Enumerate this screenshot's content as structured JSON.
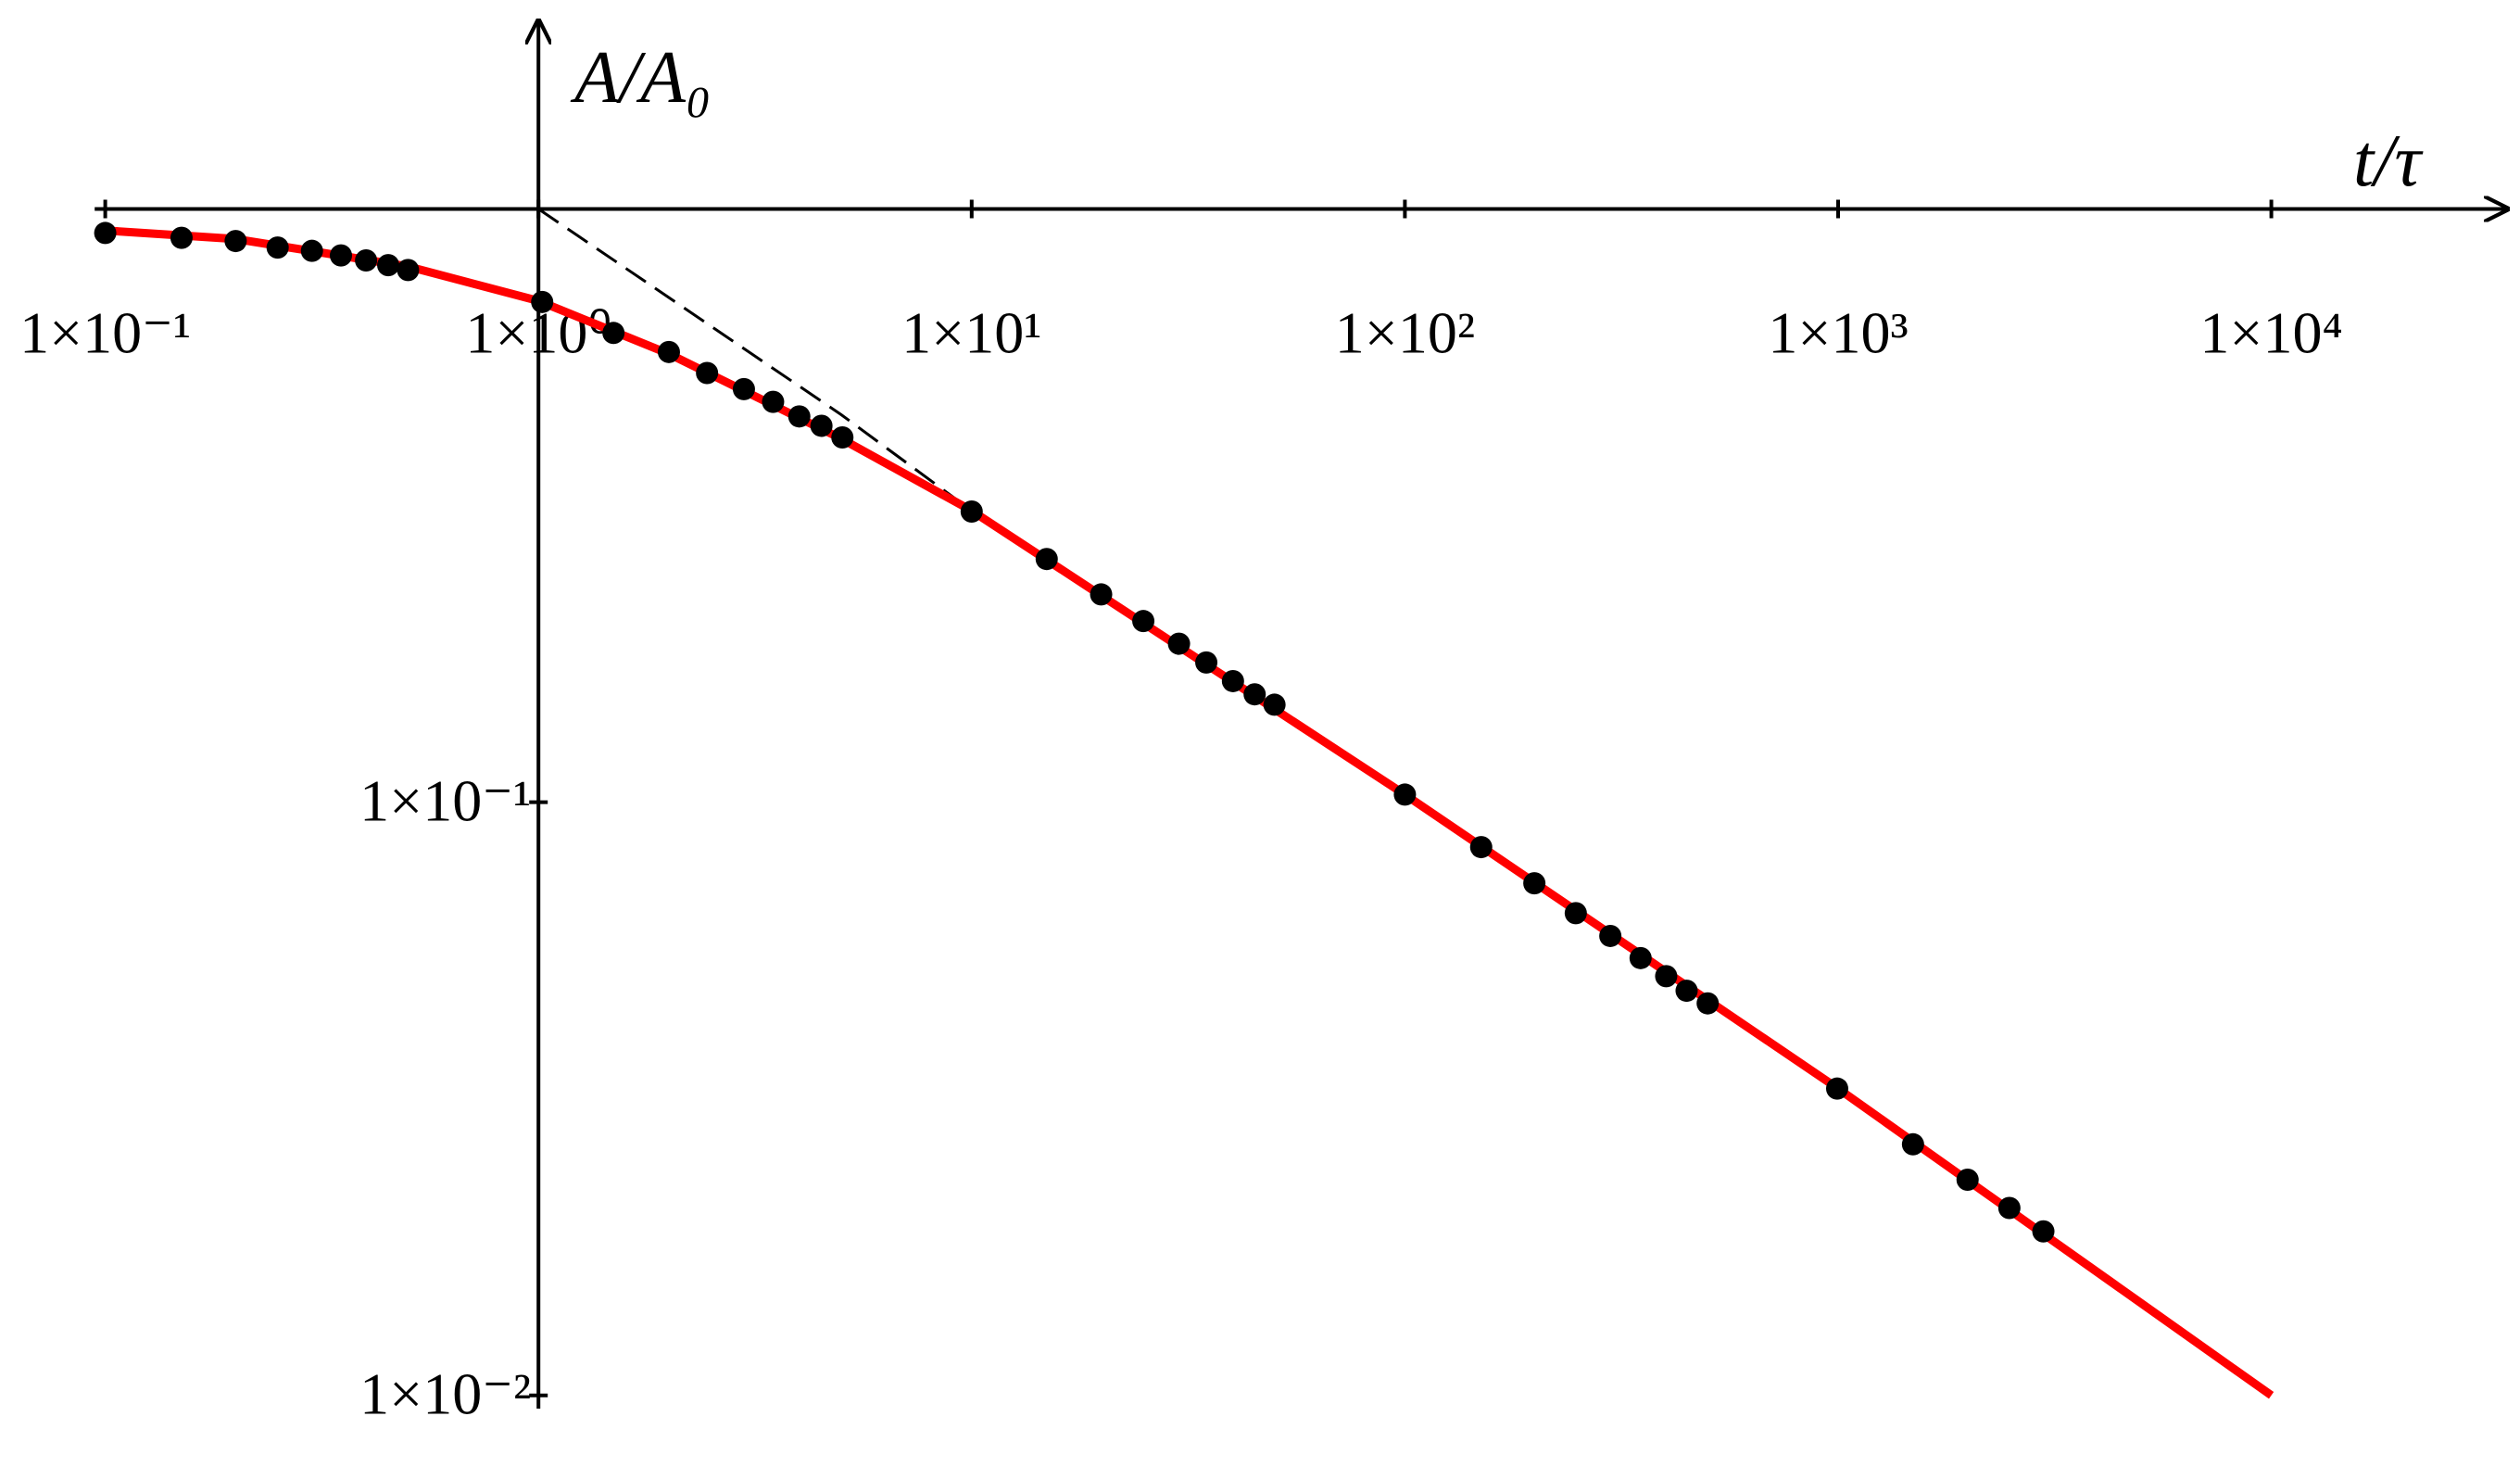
{
  "chart_data": {
    "type": "scatter",
    "x_label": "t/τ",
    "y_label": "A/A₀",
    "log_x": true,
    "log_y": true,
    "xlim": [
      0.09,
      35000
    ],
    "ylim": [
      0.0095,
      2
    ],
    "xticks": [
      {
        "value": 0.1,
        "label": "1×10⁻¹"
      },
      {
        "value": 1,
        "label": "1×10⁰"
      },
      {
        "value": 10,
        "label": "1×10¹"
      },
      {
        "value": 100,
        "label": "1×10²"
      },
      {
        "value": 1000,
        "label": "1×10³"
      },
      {
        "value": 10000,
        "label": "1×10⁴"
      }
    ],
    "yticks": [
      {
        "value": 0.1,
        "label": "1×10⁻¹"
      },
      {
        "value": 0.01,
        "label": "1×10⁻²"
      }
    ],
    "series": [
      {
        "kind": "points",
        "color": "#000000",
        "x": [
          0.1,
          0.15,
          0.2,
          0.25,
          0.3,
          0.35,
          0.4,
          0.45,
          0.5,
          1.02,
          1.49,
          2.0,
          2.45,
          2.98,
          3.48,
          4.0,
          4.5,
          5.03,
          10,
          14.9,
          19.9,
          24.9,
          30.1,
          34.8,
          40.1,
          45,
          50,
          100,
          150,
          199,
          248,
          298,
          350,
          401,
          447,
          500,
          995,
          1489,
          1990,
          2485,
          2977
        ],
        "values": [
          0.911,
          0.894,
          0.883,
          0.861,
          0.85,
          0.835,
          0.819,
          0.804,
          0.789,
          0.697,
          0.618,
          0.574,
          0.529,
          0.497,
          0.473,
          0.447,
          0.431,
          0.412,
          0.309,
          0.257,
          0.224,
          0.202,
          0.185,
          0.172,
          0.16,
          0.152,
          0.146,
          0.103,
          0.084,
          0.073,
          0.065,
          0.0595,
          0.0546,
          0.0509,
          0.0481,
          0.0458,
          0.0329,
          0.0265,
          0.0231,
          0.0207,
          0.0189
        ]
      },
      {
        "kind": "line",
        "color": "#ff0000",
        "x": [
          0.1,
          0.2,
          0.5,
          1,
          2,
          5,
          10,
          100,
          1000,
          10000
        ],
        "values": [
          0.92,
          0.89,
          0.8,
          0.7,
          0.57,
          0.41,
          0.31,
          0.103,
          0.0329,
          0.01
        ]
      },
      {
        "kind": "dashed",
        "color": "#000000",
        "x": [
          1,
          5,
          10,
          17.5
        ],
        "values": [
          1,
          0.45,
          0.31,
          0.238
        ]
      }
    ]
  }
}
